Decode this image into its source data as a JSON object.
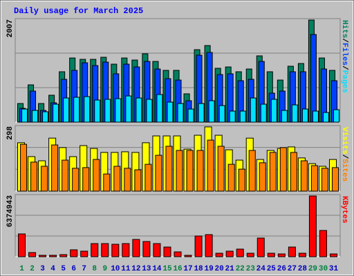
{
  "chart_data": [
    {
      "type": "bar",
      "title": "Daily usage for March 2025",
      "separator": "/",
      "ylim": [
        0,
        2007
      ],
      "yticks": [
        2007
      ],
      "series": [
        {
          "name": "Hits",
          "color": "#008060",
          "values": [
            361,
            723,
            361,
            522,
            977,
            1244,
            1218,
            1218,
            1258,
            1124,
            1244,
            1204,
            1325,
            1177,
            1004,
            1004,
            549,
            1405,
            1485,
            1044,
            1070,
            977,
            1030,
            1285,
            977,
            816,
            1084,
            1137,
            1980,
            1244,
            1004
          ]
        },
        {
          "name": "Files",
          "color": "#0040ff",
          "values": [
            268,
            602,
            227,
            375,
            830,
            1004,
            1151,
            1097,
            1164,
            937,
            1124,
            1070,
            1177,
            1030,
            843,
            816,
            415,
            1298,
            1351,
            923,
            937,
            803,
            830,
            1177,
            562,
            602,
            977,
            977,
            1699,
            1030,
            803
          ]
        },
        {
          "name": "Pages",
          "color": "#00e0ff",
          "values": [
            254,
            227,
            201,
            348,
            468,
            482,
            495,
            428,
            442,
            455,
            508,
            468,
            442,
            535,
            388,
            361,
            254,
            361,
            415,
            321,
            214,
            214,
            468,
            348,
            442,
            227,
            334,
            254,
            214,
            187,
            241
          ]
        }
      ]
    },
    {
      "type": "bar",
      "separator": "/",
      "ylim": [
        0,
        298
      ],
      "yticks": [
        298
      ],
      "series": [
        {
          "name": "Visits",
          "color": "#ffff00",
          "values": [
            220,
            157,
            138,
            241,
            198,
            157,
            207,
            194,
            176,
            176,
            179,
            176,
            220,
            251,
            251,
            251,
            191,
            254,
            292,
            254,
            188,
            141,
            241,
            144,
            185,
            194,
            201,
            151,
            125,
            113,
            144
          ]
        },
        {
          "name": "Sites",
          "color": "#ff8000",
          "values": [
            213,
            132,
            113,
            210,
            141,
            104,
            107,
            144,
            78,
            113,
            104,
            97,
            122,
            163,
            204,
            185,
            185,
            185,
            232,
            204,
            122,
            100,
            185,
            129,
            176,
            198,
            176,
            138,
            116,
            104,
            107
          ]
        }
      ]
    },
    {
      "type": "bar",
      "ylim": [
        0,
        6374943
      ],
      "yticks": [
        6374943
      ],
      "series": [
        {
          "name": "KBytes",
          "color": "#ff0000",
          "values": [
            2337479,
            424996,
            141665,
            141665,
            212499,
            708327,
            566661,
            1345821,
            1345821,
            1275000,
            1345821,
            1770818,
            1558764,
            1345821,
            991658,
            495829,
            141665,
            2124981,
            2266647,
            354164,
            566661,
            779160,
            354164,
            1912483,
            354164,
            283331,
            991658,
            354164,
            6233277,
            2691643,
            283331
          ]
        }
      ],
      "categories": [
        "1",
        "2",
        "3",
        "4",
        "5",
        "6",
        "7",
        "8",
        "9",
        "10",
        "11",
        "12",
        "13",
        "14",
        "15",
        "16",
        "17",
        "18",
        "19",
        "20",
        "21",
        "22",
        "23",
        "24",
        "25",
        "26",
        "27",
        "28",
        "29",
        "30",
        "31"
      ],
      "category_colors": [
        "#008040",
        "#008040",
        "#0000c0",
        "#0000c0",
        "#0000c0",
        "#0000c0",
        "#0000c0",
        "#008040",
        "#008040",
        "#0000c0",
        "#0000c0",
        "#0000c0",
        "#0000c0",
        "#0000c0",
        "#008040",
        "#008040",
        "#0000c0",
        "#0000c0",
        "#0000c0",
        "#0000c0",
        "#0000c0",
        "#008040",
        "#008040",
        "#0000c0",
        "#0000c0",
        "#0000c0",
        "#0000c0",
        "#0000c0",
        "#008040",
        "#008040",
        "#0000c0"
      ]
    }
  ]
}
